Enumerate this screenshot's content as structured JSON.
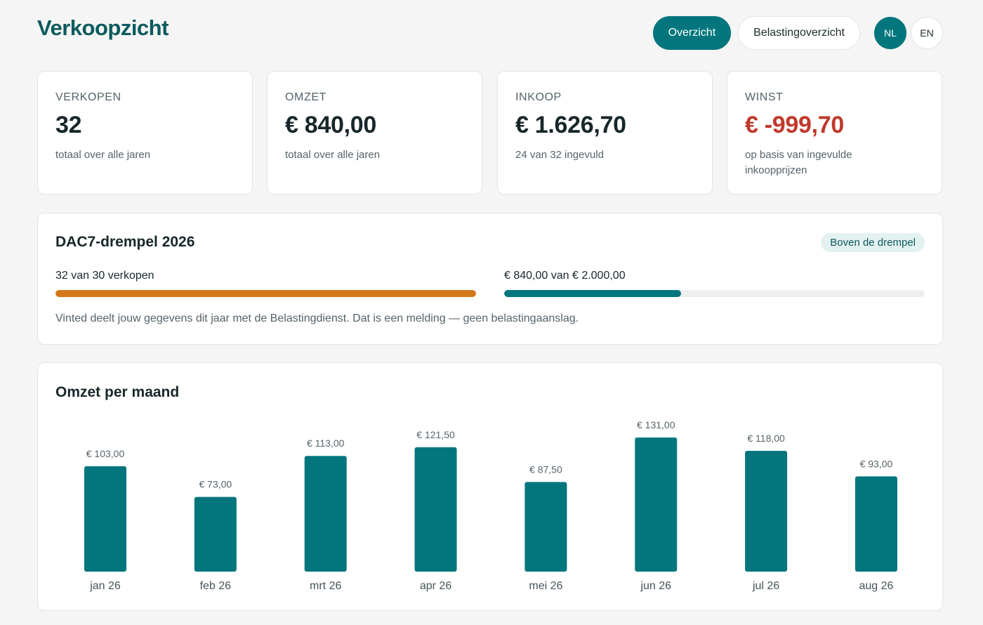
{
  "header": {
    "title": "Verkoopzicht",
    "nav": [
      {
        "label": "Overzicht",
        "active": true
      },
      {
        "label": "Belastingoverzicht",
        "active": false
      }
    ],
    "languages": [
      {
        "label": "NL",
        "active": true
      },
      {
        "label": "EN",
        "active": false
      }
    ]
  },
  "stats": [
    {
      "label": "Verkopen",
      "value": "32",
      "sub": "totaal over alle jaren"
    },
    {
      "label": "Omzet",
      "value": "€ 840,00",
      "sub": "totaal over alle jaren"
    },
    {
      "label": "Inkoop",
      "value": "€ 1.626,70",
      "sub": "24 van 32 ingevuld"
    },
    {
      "label": "Winst",
      "value": "€ -999,70",
      "sub": "op basis van ingevulde inkoopprijzen"
    }
  ],
  "dac7": {
    "title": "DAC7-drempel 2026",
    "badge": "Boven de drempel",
    "sales_progress": {
      "label": "32 van 30 verkopen",
      "fraction": 1.0,
      "color": "#d4781a"
    },
    "revenue_progress": {
      "label": "€ 840,00 van € 2.000,00",
      "fraction": 0.42,
      "color": "#03767d"
    },
    "note": "Vinted deelt jouw gegevens dit jaar met de Belastingdienst. Dat is een melding — geen belastingaanslag."
  },
  "colors": {
    "accent": "#03767d",
    "negative": "#c0392b",
    "warning": "#d4781a"
  },
  "chart_data": {
    "type": "bar",
    "title": "Omzet per maand",
    "categories": [
      "jan 26",
      "feb 26",
      "mrt 26",
      "apr 26",
      "mei 26",
      "jun 26",
      "jul 26",
      "aug 26"
    ],
    "values": [
      103.0,
      73.0,
      113.0,
      121.5,
      87.5,
      131.0,
      118.0,
      93.0
    ],
    "value_labels": [
      "€ 103,00",
      "€ 73,00",
      "€ 113,00",
      "€ 121,50",
      "€ 87,50",
      "€ 131,00",
      "€ 118,00",
      "€ 93,00"
    ],
    "bar_color": "#03767d",
    "grid": false,
    "legend": "none"
  }
}
